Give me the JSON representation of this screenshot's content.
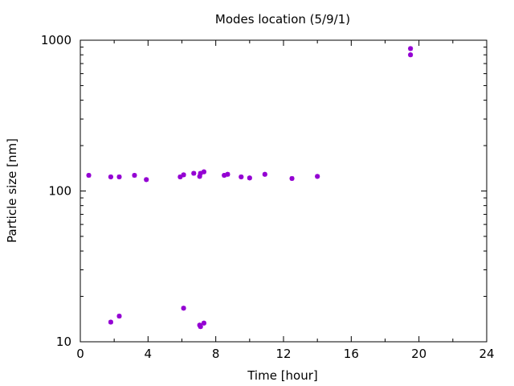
{
  "chart_data": {
    "type": "scatter",
    "title": "Modes location (5/9/1)",
    "xlabel": "Time [hour]",
    "ylabel": "Particle size [nm]",
    "xlim": [
      0,
      24
    ],
    "ylim": [
      10,
      1000
    ],
    "yscale": "log",
    "grid": false,
    "legend": "none",
    "marker_color": "#9400d3",
    "x_ticks": [
      0,
      4,
      8,
      12,
      16,
      20,
      24
    ],
    "x_tick_labels": [
      "0",
      "4",
      "8",
      "12",
      "16",
      "20",
      "24"
    ],
    "y_ticks": [
      10,
      100,
      1000
    ],
    "y_tick_labels": [
      "10",
      "100",
      "1000"
    ],
    "points": [
      {
        "x": 0.5,
        "y": 127
      },
      {
        "x": 1.8,
        "y": 124
      },
      {
        "x": 2.3,
        "y": 124
      },
      {
        "x": 3.2,
        "y": 127
      },
      {
        "x": 3.9,
        "y": 119
      },
      {
        "x": 5.9,
        "y": 124
      },
      {
        "x": 6.1,
        "y": 128
      },
      {
        "x": 6.7,
        "y": 131
      },
      {
        "x": 7.05,
        "y": 125
      },
      {
        "x": 7.1,
        "y": 131
      },
      {
        "x": 7.3,
        "y": 134
      },
      {
        "x": 8.5,
        "y": 127
      },
      {
        "x": 8.7,
        "y": 129
      },
      {
        "x": 9.5,
        "y": 124
      },
      {
        "x": 10.0,
        "y": 122
      },
      {
        "x": 10.9,
        "y": 129
      },
      {
        "x": 12.5,
        "y": 121
      },
      {
        "x": 14.0,
        "y": 125
      },
      {
        "x": 1.8,
        "y": 13.5
      },
      {
        "x": 2.3,
        "y": 14.8
      },
      {
        "x": 6.1,
        "y": 16.7
      },
      {
        "x": 7.05,
        "y": 12.9
      },
      {
        "x": 7.1,
        "y": 12.6
      },
      {
        "x": 7.3,
        "y": 13.3
      },
      {
        "x": 19.5,
        "y": 880
      },
      {
        "x": 19.5,
        "y": 800
      }
    ]
  }
}
